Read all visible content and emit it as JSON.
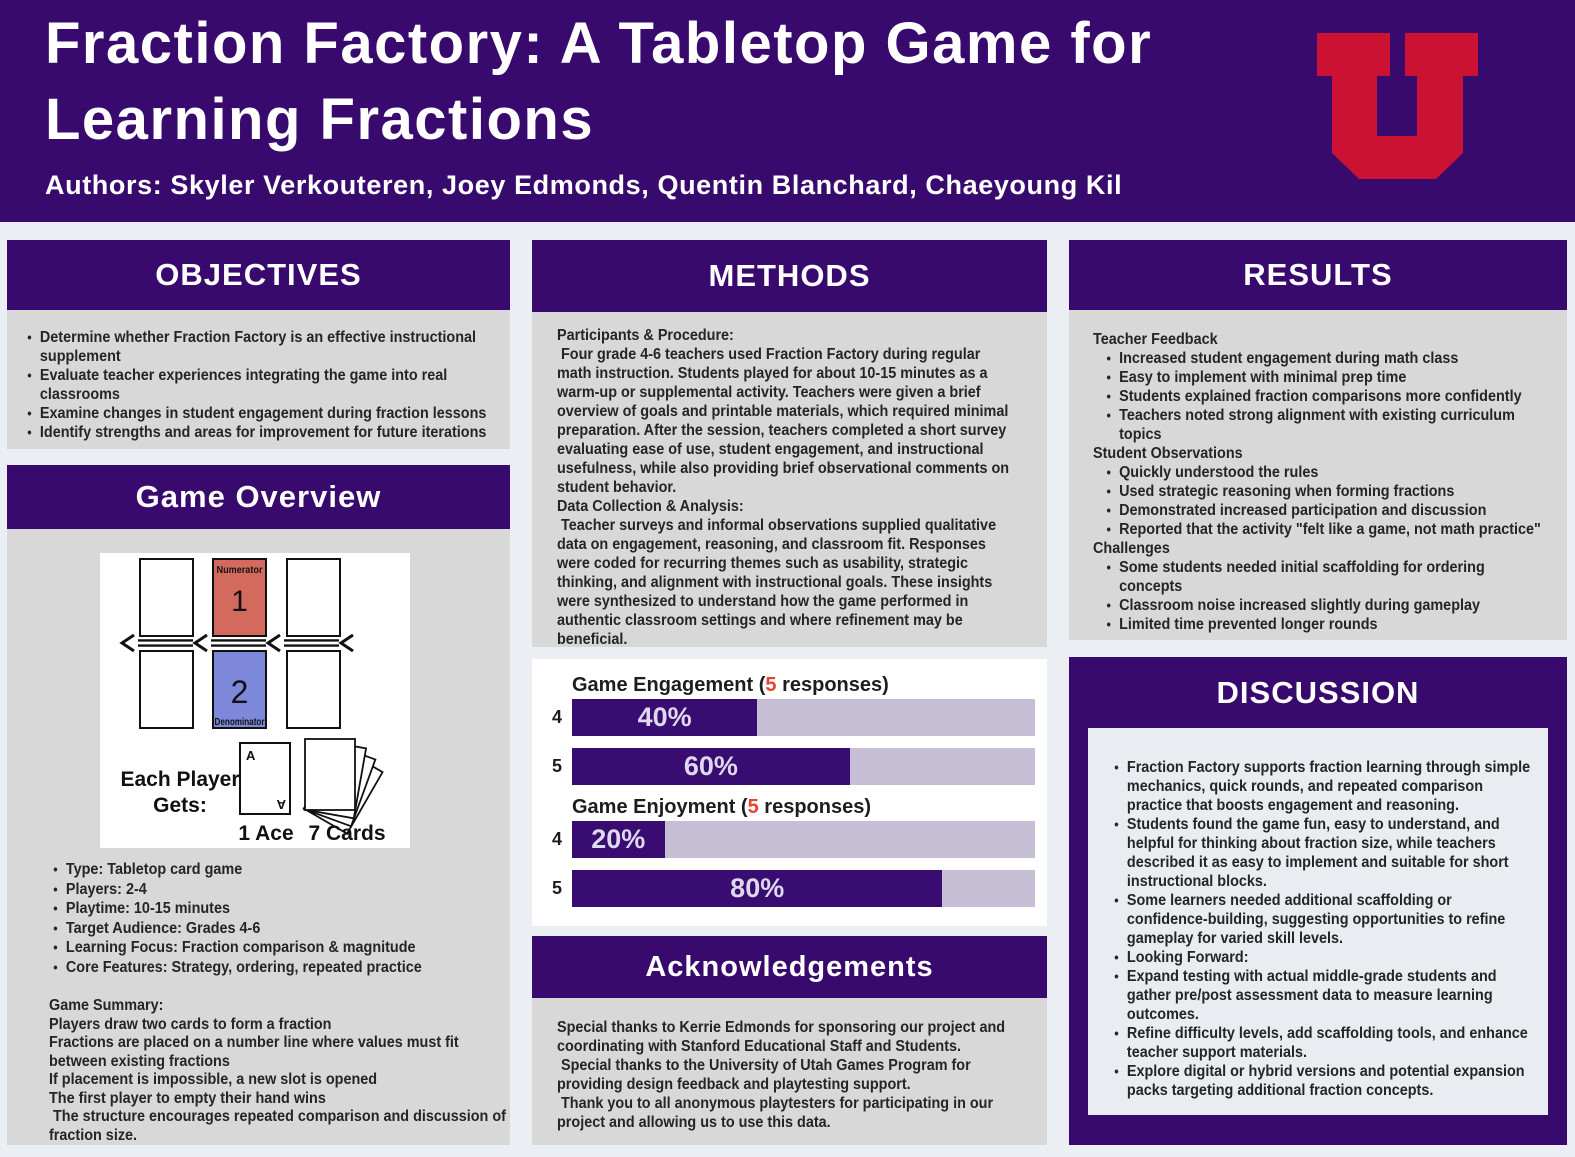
{
  "colors": {
    "page_bg": "#ebeff4",
    "accent_purple": "#380a6e",
    "panel_gray": "#d8d8d8",
    "bar_fill": "#390c72",
    "bar_track": "#c5bed4",
    "highlight_red": "#e8432d",
    "logo_red": "#cb1232",
    "numerator_red": "#d46a5e",
    "denominator_blue": "#7d88da",
    "discussion_inner": "#e9ecf1"
  },
  "header": {
    "title_line1": "Fraction Factory: A Tabletop Game for",
    "title_line2": "Learning Fractions",
    "authors": "Authors: Skyler Verkouteren, Joey Edmonds, Quentin Blanchard, Chaeyoung Kil"
  },
  "objectives": {
    "title": "OBJECTIVES",
    "bullets": [
      "Determine whether Fraction Factory is an effective instructional supplement",
      "Evaluate teacher experiences integrating the game into real classrooms",
      "Examine changes in student engagement during fraction lessons",
      "Identify strengths and areas for improvement for future iterations"
    ]
  },
  "game_overview": {
    "title": "Game Overview",
    "diagram": {
      "numerator_label": "Numerator",
      "numerator_value": "1",
      "denominator_label": "Denominator",
      "denominator_value": "2",
      "each_player_line1": "Each Player",
      "each_player_line2": "Gets:",
      "ace_letter": "A",
      "ace_count_label": "1 Ace",
      "cards_count_label": "7 Cards"
    },
    "bullets": [
      "Type: Tabletop card game",
      "Players: 2-4",
      "Playtime: 10-15 minutes",
      "Target Audience: Grades 4-6",
      "Learning Focus: Fraction comparison & magnitude",
      "Core Features: Strategy, ordering, repeated practice"
    ],
    "summary_title": "Game Summary:",
    "summary_lines": [
      "Players draw two cards to form a fraction",
      "Fractions are placed on a number line where values must fit between existing fractions",
      "If placement is impossible, a new slot is opened",
      "The first player to empty their hand wins",
      " The structure encourages repeated comparison and discussion of fraction size."
    ]
  },
  "methods": {
    "title": "METHODS",
    "sections": [
      {
        "heading": "Participants & Procedure:",
        "body": " Four grade 4-6 teachers used Fraction Factory during regular math instruction. Students played for about 10-15 minutes as a warm-up or supplemental activity. Teachers were given a brief overview of goals and printable materials, which required minimal preparation. After the session, teachers completed a short survey evaluating ease of use, student engagement, and instructional usefulness, while also providing brief observational comments on student behavior."
      },
      {
        "heading": "Data Collection & Analysis:",
        "body": " Teacher surveys and informal observations supplied qualitative data on engagement, reasoning, and classroom fit. Responses were coded for recurring themes such as usability, strategic thinking, and alignment with instructional goals. These insights were synthesized to understand how the game performed in authentic classroom settings and where refinement may be beneficial."
      }
    ]
  },
  "chart_data": [
    {
      "type": "bar",
      "title": "Game Engagement (5 responses)",
      "title_parts": [
        "Game Engagement (",
        "5",
        " responses)"
      ],
      "categories": [
        "4",
        "5"
      ],
      "values": [
        40,
        60
      ],
      "value_labels": [
        "40%",
        "60%"
      ],
      "xlim": [
        0,
        100
      ],
      "orientation": "horizontal"
    },
    {
      "type": "bar",
      "title": "Game Enjoyment (5 responses)",
      "title_parts": [
        "Game Enjoyment (",
        "5",
        " responses)"
      ],
      "categories": [
        "4",
        "5"
      ],
      "values": [
        20,
        80
      ],
      "value_labels": [
        "20%",
        "80%"
      ],
      "xlim": [
        0,
        100
      ],
      "orientation": "horizontal"
    }
  ],
  "acknowledgements": {
    "title": "Acknowledgements",
    "lines": [
      "Special thanks to Kerrie Edmonds for sponsoring our project and coordinating with Stanford Educational Staff and Students.",
      " Special thanks to the University of Utah Games Program for providing design feedback and playtesting support.",
      " Thank you to all anonymous playtesters for participating in our project and allowing us to use this data."
    ]
  },
  "results": {
    "title": "RESULTS",
    "groups": [
      {
        "heading": "Teacher Feedback",
        "bullets": [
          "Increased student engagement during math class",
          "Easy to implement with minimal prep time",
          "Students explained fraction comparisons more confidently",
          "Teachers noted strong alignment with existing curriculum topics"
        ]
      },
      {
        "heading": "Student Observations",
        "bullets": [
          "Quickly understood the rules",
          "Used strategic reasoning when forming fractions",
          "Demonstrated increased participation and discussion",
          "Reported that the activity \"felt like a game, not math practice\""
        ]
      },
      {
        "heading": "Challenges",
        "bullets": [
          "Some students needed initial scaffolding for ordering concepts",
          "Classroom noise increased slightly during gameplay",
          "Limited time prevented longer rounds"
        ]
      }
    ]
  },
  "discussion": {
    "title": "DISCUSSION",
    "bullets": [
      "Fraction Factory supports fraction learning through simple mechanics, quick rounds, and repeated comparison practice that boosts engagement and reasoning.",
      "Students found the game fun, easy to understand, and helpful for thinking about fraction size, while teachers described it as easy to implement and suitable for short instructional blocks.",
      "Some learners needed additional scaffolding or confidence-building, suggesting opportunities to refine gameplay for varied skill levels.",
      "Looking Forward:",
      "Expand testing with actual middle-grade students and gather pre/post assessment data to measure learning outcomes.",
      "Refine difficulty levels, add scaffolding tools, and enhance teacher support materials.",
      "Explore digital or hybrid versions and potential expansion packs targeting additional fraction concepts."
    ]
  }
}
